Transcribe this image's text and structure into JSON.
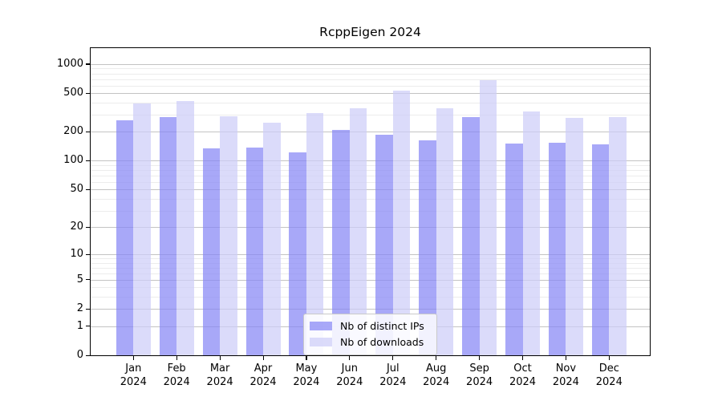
{
  "chart_data": {
    "type": "bar",
    "title": "RcppEigen 2024",
    "categories": [
      "Jan",
      "Feb",
      "Mar",
      "Apr",
      "May",
      "Jun",
      "Jul",
      "Aug",
      "Sep",
      "Oct",
      "Nov",
      "Dec"
    ],
    "category_year": "2024",
    "series": [
      {
        "name": "Nb of distinct IPs",
        "color": "rgba(134,134,245,0.72)",
        "values": [
          265,
          282,
          135,
          137,
          122,
          208,
          188,
          164,
          286,
          150,
          155,
          149
        ]
      },
      {
        "name": "Nb of downloads",
        "color": "rgba(205,205,248,0.72)",
        "values": [
          393,
          416,
          288,
          250,
          312,
          353,
          535,
          353,
          676,
          327,
          281,
          282
        ]
      }
    ],
    "yscale": "log1p",
    "ylim": [
      0,
      1460
    ],
    "yticks": [
      0,
      1,
      2,
      5,
      10,
      20,
      50,
      100,
      200,
      500,
      1000
    ],
    "minor_yticks": [
      3,
      4,
      6,
      7,
      8,
      9,
      30,
      40,
      60,
      70,
      80,
      90,
      300,
      400,
      600,
      700,
      800,
      900
    ],
    "grid": "horizontal",
    "legend_position": "bottom-center",
    "colors": {
      "major_grid": "#c3c3c3",
      "minor_grid": "#ececec",
      "spine": "#000000",
      "text": "#000000"
    }
  }
}
